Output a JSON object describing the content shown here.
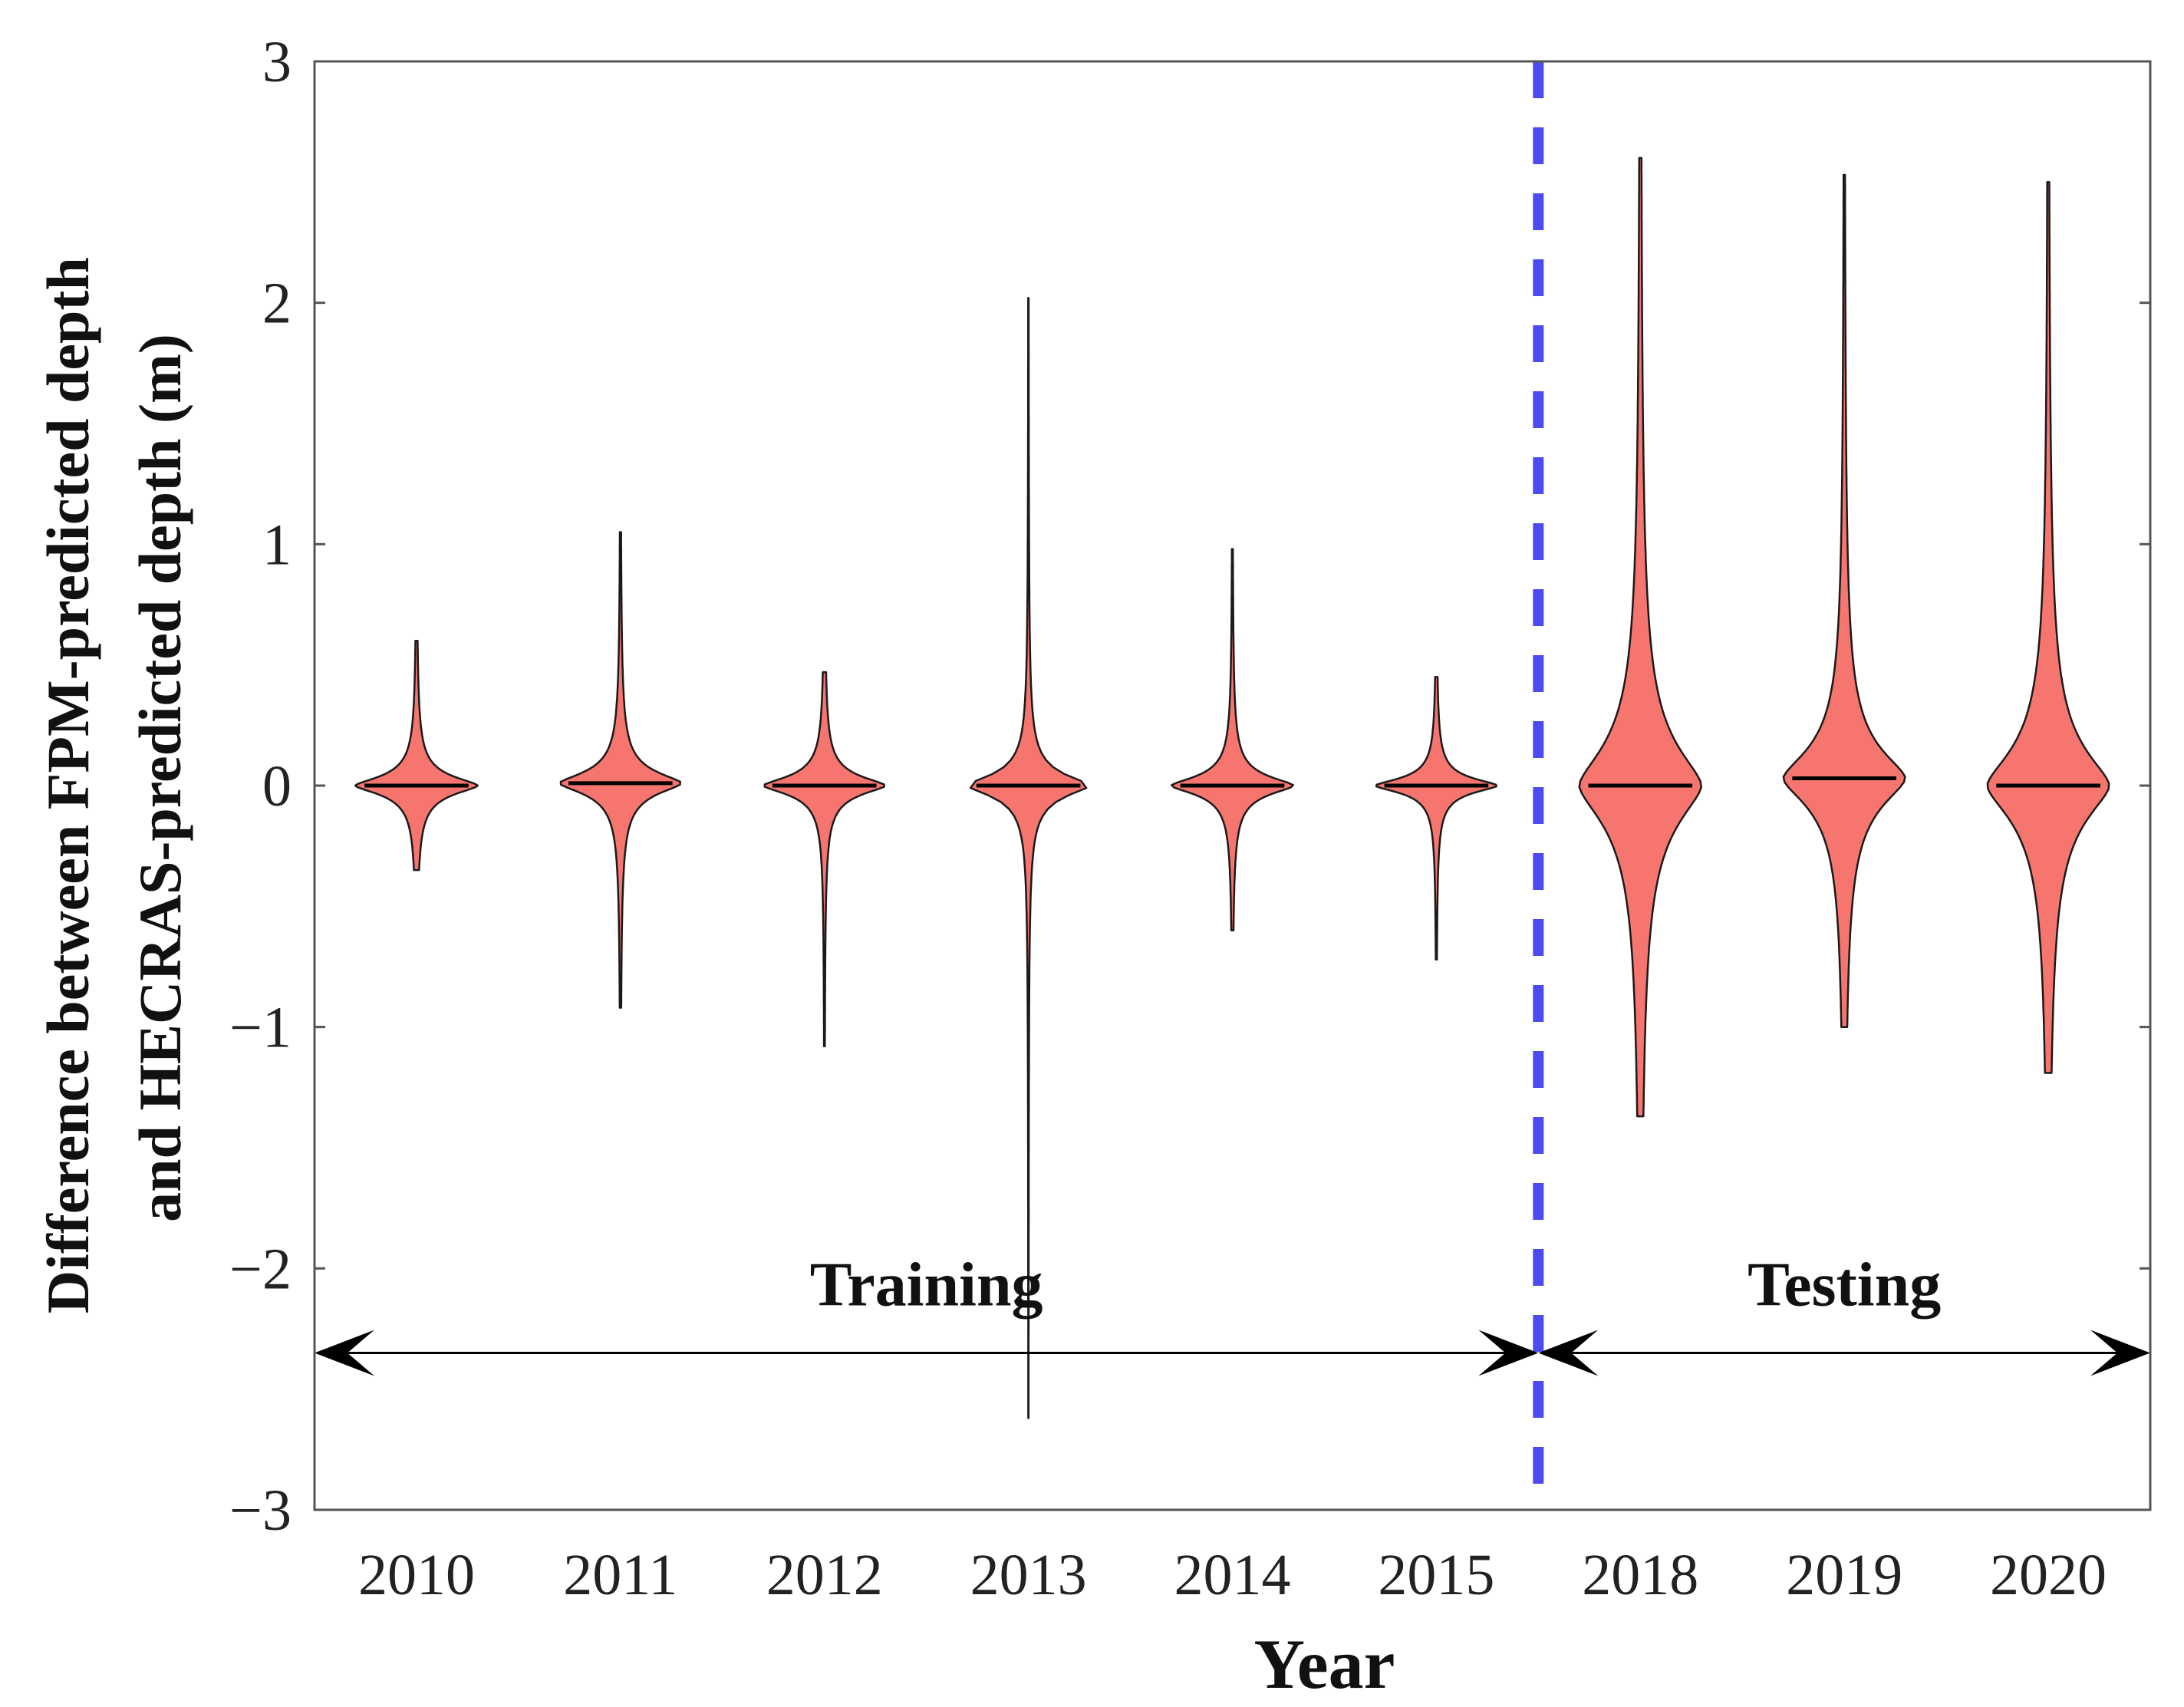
{
  "chart_data": {
    "type": "violin",
    "xlabel": "Year",
    "ylabel_lines": [
      "Difference between FPM-predicted depth",
      "and HECRAS-predicted depth (m)"
    ],
    "ylim": [
      -3,
      3
    ],
    "yticks": [
      3,
      2,
      1,
      0,
      -1,
      -2,
      -3
    ],
    "ytick_labels": [
      "3",
      "2",
      "1",
      "0",
      "−1",
      "−2",
      "−3"
    ],
    "categories": [
      "2010",
      "2011",
      "2012",
      "2013",
      "2014",
      "2015",
      "2018",
      "2019",
      "2020"
    ],
    "violins": [
      {
        "year": "2010",
        "min": -0.35,
        "max": 0.6,
        "median": 0.0,
        "spread": 0.05
      },
      {
        "year": "2011",
        "min": -0.92,
        "max": 1.05,
        "median": 0.01,
        "spread": 0.06
      },
      {
        "year": "2012",
        "min": -1.08,
        "max": 0.47,
        "median": 0.0,
        "spread": 0.05
      },
      {
        "year": "2013",
        "min": -2.62,
        "max": 2.02,
        "median": 0.0,
        "spread": 0.06
      },
      {
        "year": "2014",
        "min": -0.6,
        "max": 0.98,
        "median": 0.0,
        "spread": 0.05
      },
      {
        "year": "2015",
        "min": -0.72,
        "max": 0.45,
        "median": 0.0,
        "spread": 0.04
      },
      {
        "year": "2018",
        "min": -1.37,
        "max": 2.6,
        "median": 0.0,
        "spread": 0.22
      },
      {
        "year": "2019",
        "min": -1.0,
        "max": 2.53,
        "median": 0.03,
        "spread": 0.16
      },
      {
        "year": "2020",
        "min": -1.19,
        "max": 2.5,
        "median": 0.0,
        "spread": 0.2
      }
    ],
    "violin_color": "#f6766f",
    "divider": {
      "between": [
        "2015",
        "2018"
      ],
      "color": "#4b4bf0",
      "style": "dashed"
    },
    "annotations": [
      {
        "text": "Training",
        "spans": [
          "2010",
          "2015"
        ]
      },
      {
        "text": "Testing",
        "spans": [
          "2018",
          "2020"
        ]
      }
    ],
    "annotation_arrow_y": -2.35,
    "grid": false
  }
}
